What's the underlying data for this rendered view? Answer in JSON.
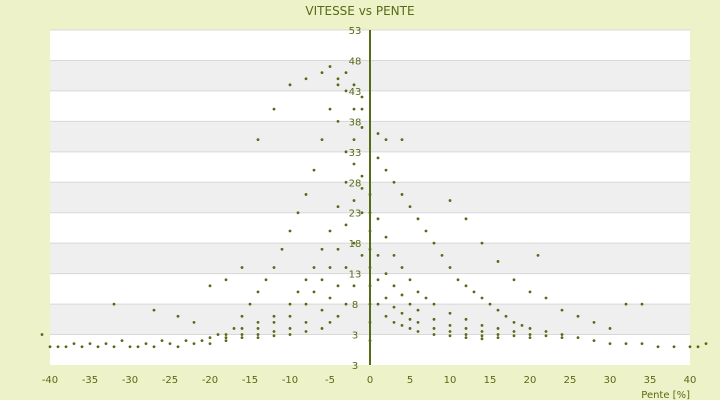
{
  "chart_data": {
    "type": "scatter",
    "title": "VITESSE vs PENTE",
    "xlabel": "Pente [%]",
    "ylabel": "",
    "xlim": [
      -40,
      40
    ],
    "ylim": [
      -2,
      53
    ],
    "xticks": [
      "-40",
      "-35",
      "-30",
      "-25",
      "-20",
      "-15",
      "-10",
      "-5",
      "0",
      "5",
      "10",
      "15",
      "20",
      "25",
      "30",
      "35",
      "40"
    ],
    "yticks": [
      "3",
      "3",
      "8",
      "13",
      "18",
      "23",
      "28",
      "33",
      "38",
      "43",
      "48",
      "53"
    ],
    "grid": true,
    "series": [
      {
        "marker_color": "#556b17",
        "points": [
          [
            -40,
            1
          ],
          [
            -39,
            1
          ],
          [
            -38,
            1
          ],
          [
            -37,
            1.5
          ],
          [
            -36,
            1
          ],
          [
            -35,
            1.5
          ],
          [
            -34,
            1
          ],
          [
            -33,
            1.5
          ],
          [
            -32,
            1
          ],
          [
            -31,
            2
          ],
          [
            -30,
            1
          ],
          [
            -29,
            1
          ],
          [
            -28,
            1.5
          ],
          [
            -27,
            1
          ],
          [
            -26,
            2
          ],
          [
            -25,
            1.5
          ],
          [
            -24,
            1
          ],
          [
            -23,
            2
          ],
          [
            -22,
            1.5
          ],
          [
            -21,
            2
          ],
          [
            -20,
            1.5
          ],
          [
            -19,
            3
          ],
          [
            -18,
            2
          ],
          [
            -17,
            4
          ],
          [
            -16,
            6
          ],
          [
            -15,
            8
          ],
          [
            -14,
            10
          ],
          [
            -13,
            12
          ],
          [
            -12,
            14
          ],
          [
            -11,
            17
          ],
          [
            -10,
            20
          ],
          [
            -9,
            23
          ],
          [
            -8,
            26
          ],
          [
            -7,
            30
          ],
          [
            -6,
            35
          ],
          [
            -5,
            40
          ],
          [
            -4,
            44
          ],
          [
            -3,
            46
          ],
          [
            -2,
            44
          ],
          [
            -1,
            40
          ],
          [
            -41,
            3
          ],
          [
            -32,
            8
          ],
          [
            -27,
            7
          ],
          [
            -24,
            6
          ],
          [
            -22,
            5
          ],
          [
            -20,
            11
          ],
          [
            -18,
            12
          ],
          [
            -16,
            14
          ],
          [
            -14,
            35
          ],
          [
            -12,
            40
          ],
          [
            -10,
            44
          ],
          [
            -8,
            45
          ],
          [
            -6,
            46
          ],
          [
            -5,
            47
          ],
          [
            -4,
            45
          ],
          [
            -3,
            43
          ],
          [
            -20,
            2.5
          ],
          [
            -18,
            3
          ],
          [
            -16,
            4
          ],
          [
            -14,
            5
          ],
          [
            -12,
            6
          ],
          [
            -10,
            8
          ],
          [
            -9,
            10
          ],
          [
            -8,
            12
          ],
          [
            -7,
            14
          ],
          [
            -6,
            17
          ],
          [
            -5,
            20
          ],
          [
            -4,
            24
          ],
          [
            -3,
            28
          ],
          [
            -2,
            31
          ],
          [
            -1,
            29
          ],
          [
            -18,
            2.5
          ],
          [
            -16,
            3
          ],
          [
            -14,
            4
          ],
          [
            -12,
            5
          ],
          [
            -10,
            6
          ],
          [
            -8,
            8
          ],
          [
            -7,
            10
          ],
          [
            -6,
            12
          ],
          [
            -5,
            14
          ],
          [
            -4,
            17
          ],
          [
            -3,
            21
          ],
          [
            -2,
            25
          ],
          [
            -1,
            27
          ],
          [
            -16,
            2.5
          ],
          [
            -14,
            3
          ],
          [
            -12,
            3.5
          ],
          [
            -10,
            4
          ],
          [
            -8,
            5
          ],
          [
            -6,
            7
          ],
          [
            -5,
            9
          ],
          [
            -4,
            11
          ],
          [
            -3,
            14
          ],
          [
            -2,
            18
          ],
          [
            -1,
            23
          ],
          [
            -14,
            2.5
          ],
          [
            -12,
            2.8
          ],
          [
            -10,
            3
          ],
          [
            -8,
            3.5
          ],
          [
            -6,
            4
          ],
          [
            -5,
            5
          ],
          [
            -4,
            6
          ],
          [
            -3,
            8
          ],
          [
            -2,
            11
          ],
          [
            -1,
            16
          ],
          [
            -3,
            33
          ],
          [
            -2,
            35
          ],
          [
            -1,
            37
          ],
          [
            -4,
            38
          ],
          [
            -2,
            40
          ],
          [
            -1,
            42
          ],
          [
            0,
            2
          ],
          [
            0,
            5
          ],
          [
            0,
            8
          ],
          [
            0,
            11
          ],
          [
            0,
            14
          ],
          [
            0,
            17
          ],
          [
            0,
            20
          ],
          [
            0,
            23
          ],
          [
            0,
            26
          ],
          [
            1,
            36
          ],
          [
            2,
            35
          ],
          [
            4,
            35
          ],
          [
            1,
            32
          ],
          [
            2,
            30
          ],
          [
            3,
            28
          ],
          [
            4,
            26
          ],
          [
            5,
            24
          ],
          [
            6,
            22
          ],
          [
            7,
            20
          ],
          [
            8,
            18
          ],
          [
            9,
            16
          ],
          [
            10,
            14
          ],
          [
            11,
            12
          ],
          [
            12,
            11
          ],
          [
            13,
            10
          ],
          [
            14,
            9
          ],
          [
            15,
            8
          ],
          [
            16,
            7
          ],
          [
            17,
            6
          ],
          [
            18,
            5
          ],
          [
            19,
            4.5
          ],
          [
            20,
            4
          ],
          [
            22,
            3.5
          ],
          [
            24,
            3
          ],
          [
            26,
            2.5
          ],
          [
            28,
            2
          ],
          [
            30,
            1.5
          ],
          [
            32,
            1.5
          ],
          [
            34,
            1.5
          ],
          [
            36,
            1
          ],
          [
            38,
            1
          ],
          [
            40,
            1
          ],
          [
            41,
            1
          ],
          [
            42,
            1.5
          ],
          [
            1,
            22
          ],
          [
            2,
            19
          ],
          [
            3,
            16
          ],
          [
            4,
            14
          ],
          [
            5,
            12
          ],
          [
            6,
            10
          ],
          [
            7,
            9
          ],
          [
            8,
            8
          ],
          [
            10,
            6.5
          ],
          [
            12,
            5.5
          ],
          [
            14,
            4.5
          ],
          [
            16,
            4
          ],
          [
            18,
            3.5
          ],
          [
            20,
            3
          ],
          [
            22,
            2.8
          ],
          [
            24,
            2.5
          ],
          [
            1,
            16
          ],
          [
            2,
            13
          ],
          [
            3,
            11
          ],
          [
            4,
            9.5
          ],
          [
            5,
            8
          ],
          [
            6,
            7
          ],
          [
            8,
            5.5
          ],
          [
            10,
            4.5
          ],
          [
            12,
            4
          ],
          [
            14,
            3.5
          ],
          [
            16,
            3
          ],
          [
            18,
            2.8
          ],
          [
            20,
            2.5
          ],
          [
            1,
            12
          ],
          [
            2,
            9
          ],
          [
            3,
            7.5
          ],
          [
            4,
            6.5
          ],
          [
            5,
            5.5
          ],
          [
            6,
            5
          ],
          [
            8,
            4
          ],
          [
            10,
            3.5
          ],
          [
            12,
            3
          ],
          [
            14,
            2.8
          ],
          [
            16,
            2.5
          ],
          [
            1,
            8
          ],
          [
            2,
            6
          ],
          [
            3,
            5
          ],
          [
            4,
            4.5
          ],
          [
            5,
            4
          ],
          [
            6,
            3.5
          ],
          [
            8,
            3
          ],
          [
            10,
            2.8
          ],
          [
            12,
            2.5
          ],
          [
            14,
            2.3
          ],
          [
            10,
            25
          ],
          [
            12,
            22
          ],
          [
            14,
            18
          ],
          [
            16,
            15
          ],
          [
            18,
            12
          ],
          [
            20,
            10
          ],
          [
            21,
            16
          ],
          [
            22,
            9
          ],
          [
            24,
            7
          ],
          [
            26,
            6
          ],
          [
            28,
            5
          ],
          [
            30,
            4
          ],
          [
            32,
            8
          ],
          [
            34,
            8
          ]
        ]
      }
    ]
  }
}
